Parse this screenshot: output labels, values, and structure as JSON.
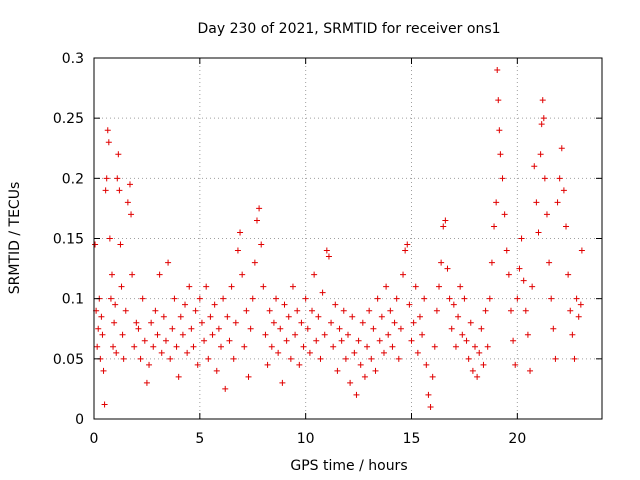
{
  "chart_data": {
    "type": "scatter",
    "title": "Day 230 of 2021, SRMTID for receiver ons1",
    "xlabel": "GPS time / hours",
    "ylabel": "SRMTID / TECUs",
    "xlim": [
      0,
      24
    ],
    "ylim": [
      0,
      0.3
    ],
    "x_ticks": [
      0,
      5,
      10,
      15,
      20
    ],
    "x_tick_labels": [
      "0",
      "5",
      "10",
      "15",
      "20"
    ],
    "y_ticks": [
      0,
      0.05,
      0.1,
      0.15,
      0.2,
      0.25,
      0.3
    ],
    "y_tick_labels": [
      "0",
      "0.05",
      "0.1",
      "0.15",
      "0.2",
      "0.25",
      "0.3"
    ],
    "grid": true,
    "marker": "+",
    "marker_color": "#e00000",
    "series": [
      {
        "name": "SRMTID",
        "points": [
          [
            0.05,
            0.145
          ],
          [
            0.1,
            0.09
          ],
          [
            0.15,
            0.06
          ],
          [
            0.2,
            0.075
          ],
          [
            0.25,
            0.1
          ],
          [
            0.3,
            0.05
          ],
          [
            0.35,
            0.085
          ],
          [
            0.4,
            0.07
          ],
          [
            0.45,
            0.04
          ],
          [
            0.5,
            0.012
          ],
          [
            0.55,
            0.19
          ],
          [
            0.6,
            0.2
          ],
          [
            0.65,
            0.24
          ],
          [
            0.7,
            0.23
          ],
          [
            0.75,
            0.15
          ],
          [
            0.8,
            0.1
          ],
          [
            0.85,
            0.12
          ],
          [
            0.9,
            0.06
          ],
          [
            0.95,
            0.08
          ],
          [
            1.0,
            0.095
          ],
          [
            1.05,
            0.055
          ],
          [
            1.1,
            0.2
          ],
          [
            1.15,
            0.22
          ],
          [
            1.2,
            0.19
          ],
          [
            1.25,
            0.145
          ],
          [
            1.3,
            0.11
          ],
          [
            1.35,
            0.07
          ],
          [
            1.4,
            0.05
          ],
          [
            1.5,
            0.09
          ],
          [
            1.6,
            0.18
          ],
          [
            1.7,
            0.195
          ],
          [
            1.75,
            0.17
          ],
          [
            1.8,
            0.12
          ],
          [
            1.9,
            0.06
          ],
          [
            2.0,
            0.08
          ],
          [
            2.1,
            0.075
          ],
          [
            2.2,
            0.05
          ],
          [
            2.3,
            0.1
          ],
          [
            2.4,
            0.065
          ],
          [
            2.5,
            0.03
          ],
          [
            2.6,
            0.045
          ],
          [
            2.7,
            0.08
          ],
          [
            2.8,
            0.06
          ],
          [
            2.9,
            0.09
          ],
          [
            3.0,
            0.07
          ],
          [
            3.1,
            0.12
          ],
          [
            3.2,
            0.055
          ],
          [
            3.3,
            0.085
          ],
          [
            3.4,
            0.065
          ],
          [
            3.5,
            0.13
          ],
          [
            3.6,
            0.05
          ],
          [
            3.7,
            0.075
          ],
          [
            3.8,
            0.1
          ],
          [
            3.9,
            0.06
          ],
          [
            4.0,
            0.035
          ],
          [
            4.1,
            0.085
          ],
          [
            4.2,
            0.07
          ],
          [
            4.3,
            0.095
          ],
          [
            4.4,
            0.055
          ],
          [
            4.5,
            0.11
          ],
          [
            4.6,
            0.075
          ],
          [
            4.7,
            0.06
          ],
          [
            4.8,
            0.09
          ],
          [
            4.9,
            0.045
          ],
          [
            5.0,
            0.1
          ],
          [
            5.1,
            0.08
          ],
          [
            5.2,
            0.065
          ],
          [
            5.3,
            0.11
          ],
          [
            5.4,
            0.05
          ],
          [
            5.5,
            0.085
          ],
          [
            5.6,
            0.07
          ],
          [
            5.7,
            0.095
          ],
          [
            5.8,
            0.04
          ],
          [
            5.9,
            0.075
          ],
          [
            6.0,
            0.06
          ],
          [
            6.1,
            0.1
          ],
          [
            6.2,
            0.025
          ],
          [
            6.3,
            0.085
          ],
          [
            6.4,
            0.065
          ],
          [
            6.5,
            0.11
          ],
          [
            6.6,
            0.05
          ],
          [
            6.7,
            0.08
          ],
          [
            6.8,
            0.14
          ],
          [
            6.9,
            0.155
          ],
          [
            7.0,
            0.12
          ],
          [
            7.1,
            0.06
          ],
          [
            7.2,
            0.09
          ],
          [
            7.3,
            0.035
          ],
          [
            7.4,
            0.075
          ],
          [
            7.5,
            0.1
          ],
          [
            7.6,
            0.13
          ],
          [
            7.7,
            0.165
          ],
          [
            7.8,
            0.175
          ],
          [
            7.9,
            0.145
          ],
          [
            8.0,
            0.11
          ],
          [
            8.1,
            0.07
          ],
          [
            8.2,
            0.045
          ],
          [
            8.3,
            0.09
          ],
          [
            8.4,
            0.06
          ],
          [
            8.5,
            0.08
          ],
          [
            8.6,
            0.1
          ],
          [
            8.7,
            0.055
          ],
          [
            8.8,
            0.075
          ],
          [
            8.9,
            0.03
          ],
          [
            9.0,
            0.095
          ],
          [
            9.1,
            0.065
          ],
          [
            9.2,
            0.085
          ],
          [
            9.3,
            0.05
          ],
          [
            9.4,
            0.11
          ],
          [
            9.5,
            0.07
          ],
          [
            9.6,
            0.09
          ],
          [
            9.7,
            0.045
          ],
          [
            9.8,
            0.08
          ],
          [
            9.9,
            0.06
          ],
          [
            10.0,
            0.1
          ],
          [
            10.1,
            0.075
          ],
          [
            10.2,
            0.055
          ],
          [
            10.3,
            0.09
          ],
          [
            10.4,
            0.12
          ],
          [
            10.5,
            0.065
          ],
          [
            10.6,
            0.085
          ],
          [
            10.7,
            0.05
          ],
          [
            10.8,
            0.105
          ],
          [
            10.9,
            0.07
          ],
          [
            11.0,
            0.14
          ],
          [
            11.1,
            0.135
          ],
          [
            11.2,
            0.08
          ],
          [
            11.3,
            0.06
          ],
          [
            11.4,
            0.095
          ],
          [
            11.5,
            0.04
          ],
          [
            11.6,
            0.075
          ],
          [
            11.7,
            0.065
          ],
          [
            11.8,
            0.09
          ],
          [
            11.9,
            0.05
          ],
          [
            12.0,
            0.07
          ],
          [
            12.1,
            0.03
          ],
          [
            12.2,
            0.085
          ],
          [
            12.3,
            0.055
          ],
          [
            12.4,
            0.02
          ],
          [
            12.5,
            0.065
          ],
          [
            12.6,
            0.045
          ],
          [
            12.7,
            0.08
          ],
          [
            12.8,
            0.035
          ],
          [
            12.9,
            0.06
          ],
          [
            13.0,
            0.09
          ],
          [
            13.1,
            0.05
          ],
          [
            13.2,
            0.075
          ],
          [
            13.3,
            0.04
          ],
          [
            13.4,
            0.1
          ],
          [
            13.5,
            0.065
          ],
          [
            13.6,
            0.085
          ],
          [
            13.7,
            0.055
          ],
          [
            13.8,
            0.11
          ],
          [
            13.9,
            0.07
          ],
          [
            14.0,
            0.09
          ],
          [
            14.1,
            0.06
          ],
          [
            14.2,
            0.08
          ],
          [
            14.3,
            0.1
          ],
          [
            14.4,
            0.05
          ],
          [
            14.5,
            0.075
          ],
          [
            14.6,
            0.12
          ],
          [
            14.7,
            0.14
          ],
          [
            14.8,
            0.145
          ],
          [
            14.9,
            0.095
          ],
          [
            15.0,
            0.065
          ],
          [
            15.1,
            0.08
          ],
          [
            15.2,
            0.11
          ],
          [
            15.3,
            0.055
          ],
          [
            15.4,
            0.085
          ],
          [
            15.5,
            0.07
          ],
          [
            15.6,
            0.1
          ],
          [
            15.7,
            0.045
          ],
          [
            15.8,
            0.02
          ],
          [
            15.9,
            0.01
          ],
          [
            16.0,
            0.035
          ],
          [
            16.1,
            0.06
          ],
          [
            16.2,
            0.09
          ],
          [
            16.3,
            0.11
          ],
          [
            16.4,
            0.13
          ],
          [
            16.5,
            0.16
          ],
          [
            16.6,
            0.165
          ],
          [
            16.7,
            0.125
          ],
          [
            16.8,
            0.1
          ],
          [
            16.9,
            0.075
          ],
          [
            17.0,
            0.095
          ],
          [
            17.1,
            0.06
          ],
          [
            17.2,
            0.085
          ],
          [
            17.3,
            0.11
          ],
          [
            17.4,
            0.07
          ],
          [
            17.5,
            0.1
          ],
          [
            17.6,
            0.065
          ],
          [
            17.7,
            0.05
          ],
          [
            17.8,
            0.08
          ],
          [
            17.9,
            0.04
          ],
          [
            18.0,
            0.06
          ],
          [
            18.1,
            0.035
          ],
          [
            18.2,
            0.055
          ],
          [
            18.3,
            0.075
          ],
          [
            18.4,
            0.045
          ],
          [
            18.5,
            0.09
          ],
          [
            18.6,
            0.06
          ],
          [
            18.7,
            0.1
          ],
          [
            18.8,
            0.13
          ],
          [
            18.9,
            0.16
          ],
          [
            19.0,
            0.18
          ],
          [
            19.05,
            0.29
          ],
          [
            19.1,
            0.265
          ],
          [
            19.15,
            0.24
          ],
          [
            19.2,
            0.22
          ],
          [
            19.3,
            0.2
          ],
          [
            19.4,
            0.17
          ],
          [
            19.5,
            0.14
          ],
          [
            19.6,
            0.12
          ],
          [
            19.7,
            0.09
          ],
          [
            19.8,
            0.065
          ],
          [
            19.9,
            0.045
          ],
          [
            20.0,
            0.1
          ],
          [
            20.1,
            0.125
          ],
          [
            20.2,
            0.15
          ],
          [
            20.3,
            0.115
          ],
          [
            20.4,
            0.09
          ],
          [
            20.5,
            0.07
          ],
          [
            20.6,
            0.04
          ],
          [
            20.7,
            0.11
          ],
          [
            20.8,
            0.21
          ],
          [
            20.9,
            0.18
          ],
          [
            21.0,
            0.155
          ],
          [
            21.1,
            0.22
          ],
          [
            21.15,
            0.245
          ],
          [
            21.2,
            0.265
          ],
          [
            21.25,
            0.25
          ],
          [
            21.3,
            0.2
          ],
          [
            21.4,
            0.17
          ],
          [
            21.5,
            0.13
          ],
          [
            21.6,
            0.1
          ],
          [
            21.7,
            0.075
          ],
          [
            21.8,
            0.05
          ],
          [
            21.9,
            0.18
          ],
          [
            22.0,
            0.2
          ],
          [
            22.1,
            0.225
          ],
          [
            22.2,
            0.19
          ],
          [
            22.3,
            0.16
          ],
          [
            22.4,
            0.12
          ],
          [
            22.5,
            0.09
          ],
          [
            22.6,
            0.07
          ],
          [
            22.7,
            0.05
          ],
          [
            22.8,
            0.1
          ],
          [
            22.9,
            0.085
          ],
          [
            23.0,
            0.095
          ],
          [
            23.05,
            0.14
          ]
        ]
      }
    ]
  }
}
